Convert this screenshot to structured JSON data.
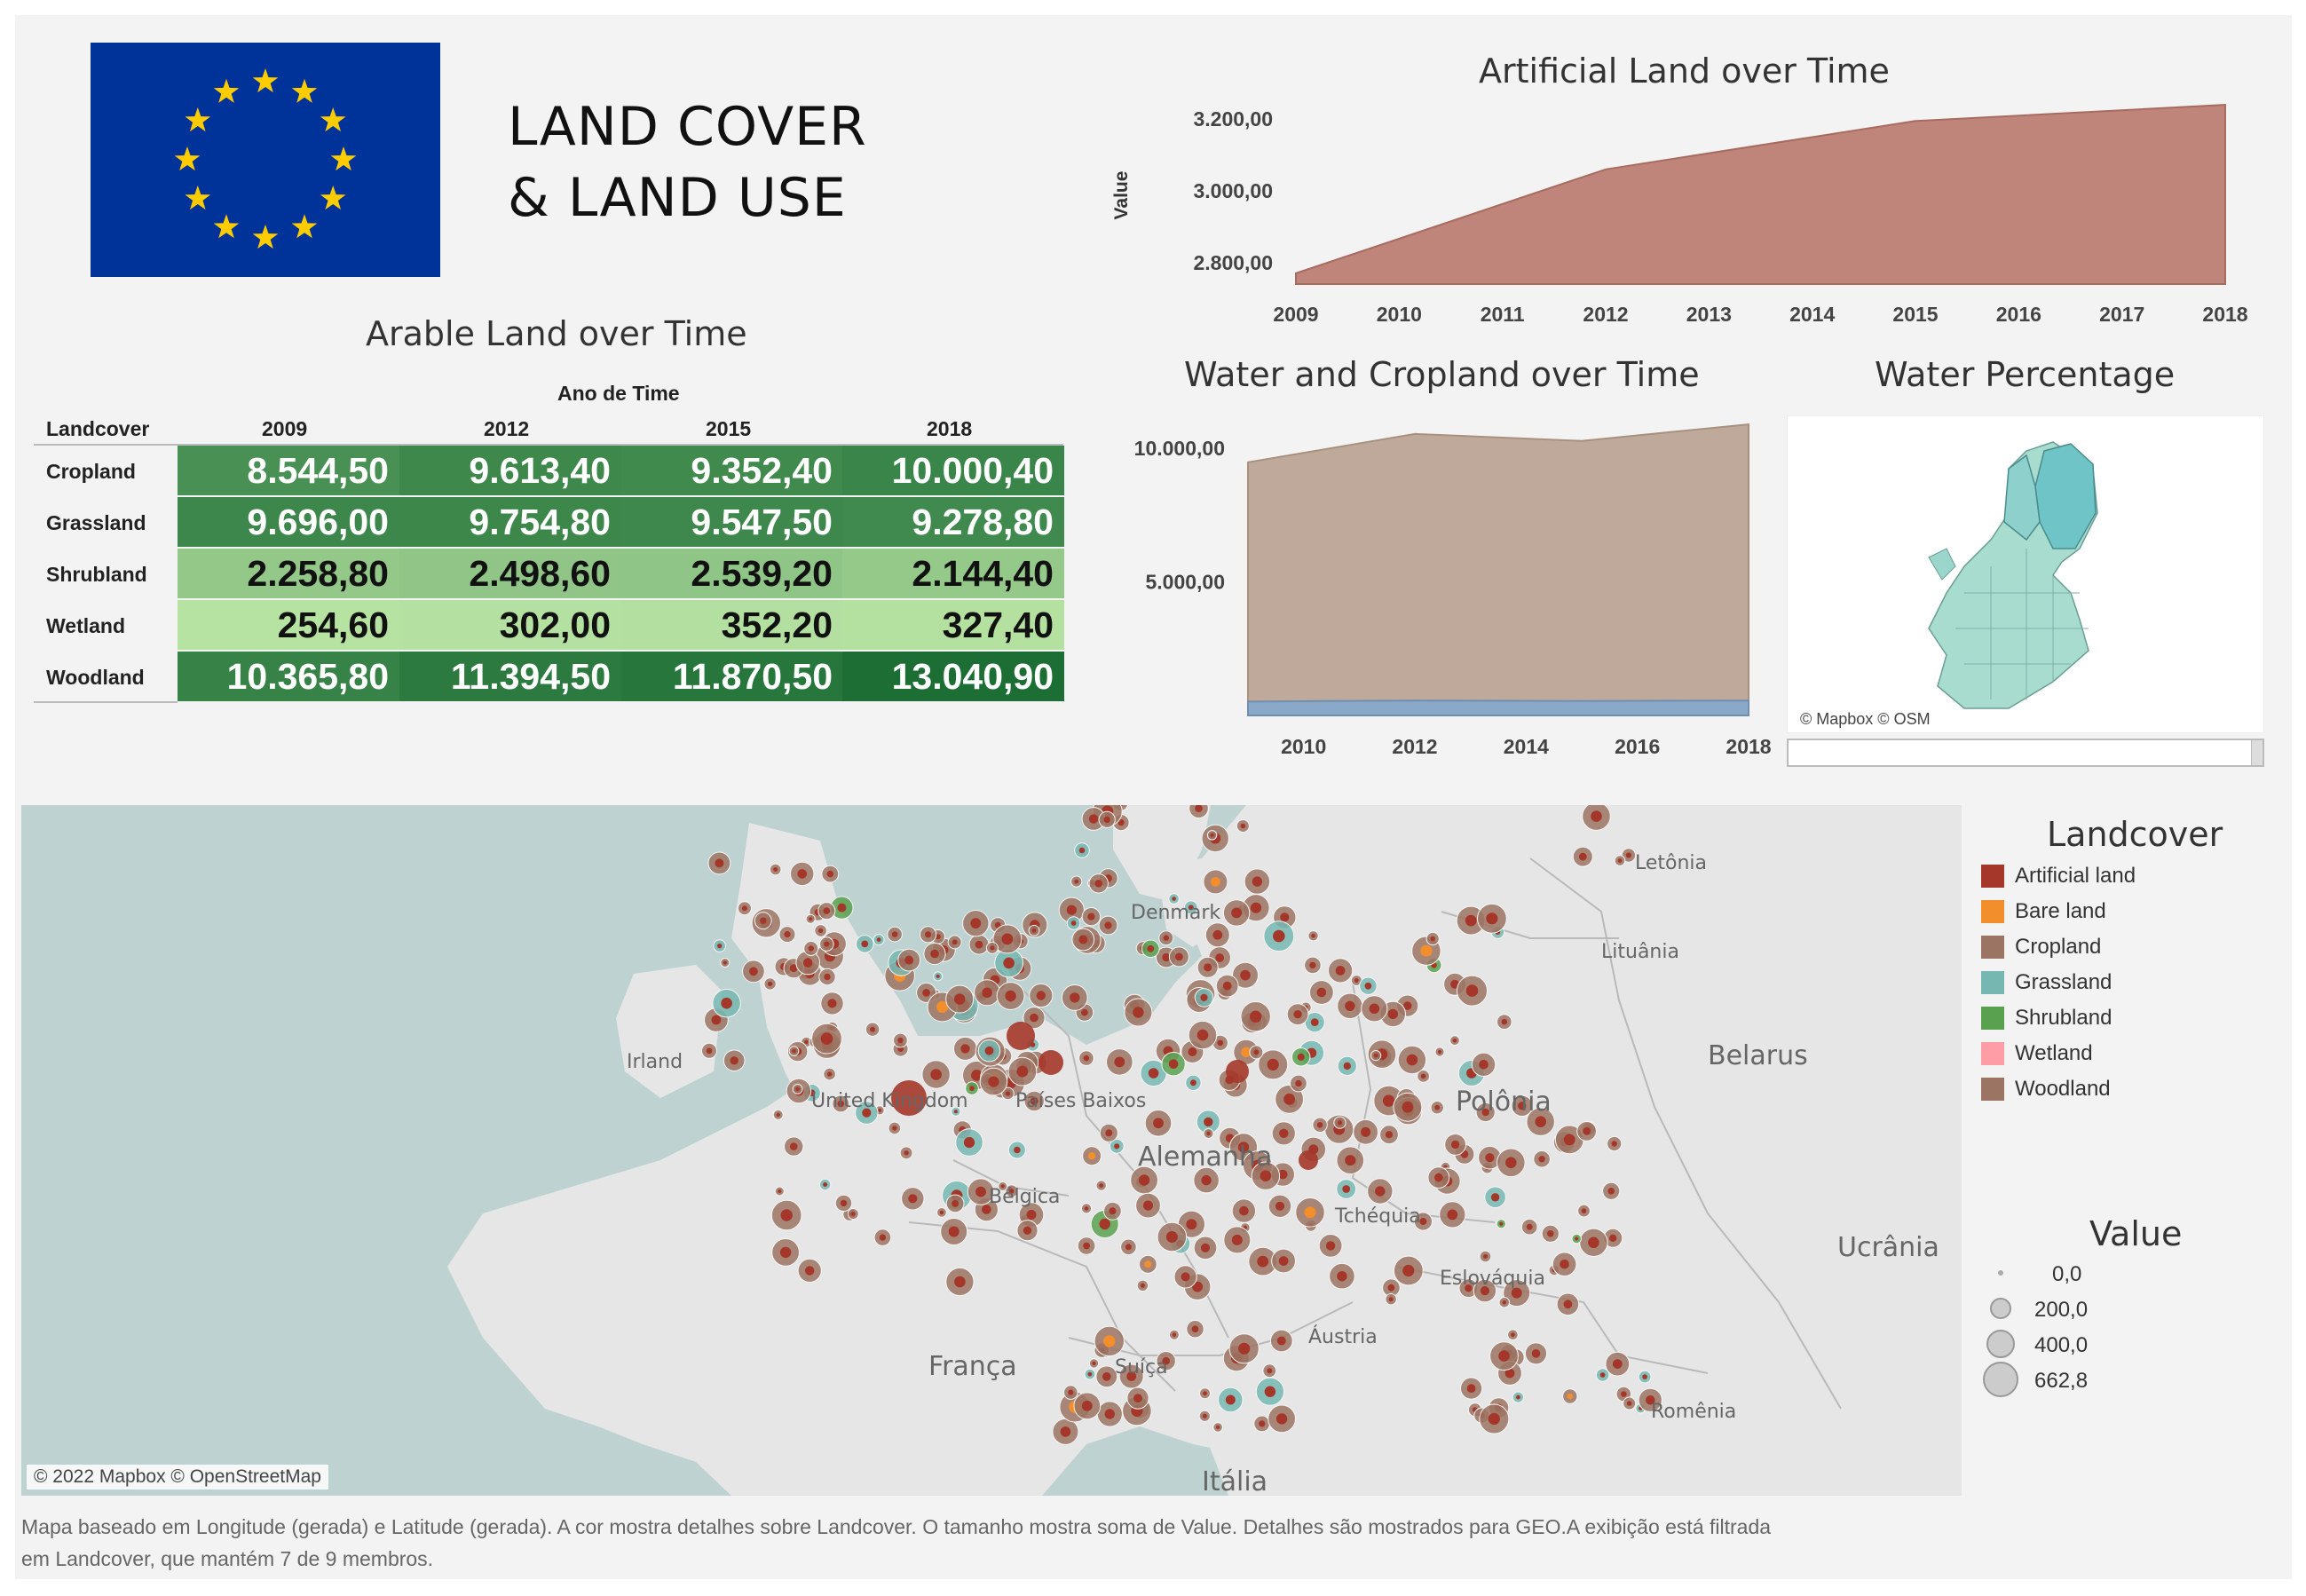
{
  "header": {
    "title_line1": "LAND COVER",
    "title_line2": "& LAND USE",
    "flag": {
      "name": "EU flag",
      "background": "#003399",
      "star_color": "#ffcc00",
      "star_count": 12
    }
  },
  "arable_table": {
    "title": "Arable Land over Time",
    "column_group_header": "Ano de Time",
    "row_header": "Landcover",
    "years": [
      "2009",
      "2012",
      "2015",
      "2018"
    ],
    "rows": [
      {
        "label": "Cropland",
        "values": [
          "8.544,50",
          "9.613,40",
          "9.352,40",
          "10.000,40"
        ]
      },
      {
        "label": "Grassland",
        "values": [
          "9.696,00",
          "9.754,80",
          "9.547,50",
          "9.278,80"
        ]
      },
      {
        "label": "Shrubland",
        "values": [
          "2.258,80",
          "2.498,60",
          "2.539,20",
          "2.144,40"
        ]
      },
      {
        "label": "Wetland",
        "values": [
          "254,60",
          "302,00",
          "352,20",
          "327,40"
        ]
      },
      {
        "label": "Woodland",
        "values": [
          "10.365,80",
          "11.394,50",
          "11.870,50",
          "13.040,90"
        ]
      }
    ]
  },
  "artificial_chart": {
    "title": "Artificial Land over Time",
    "ylabel": "Value",
    "y_ticks": [
      "2.800,00",
      "3.000,00",
      "3.200,00"
    ],
    "x_ticks": [
      "2009",
      "2010",
      "2011",
      "2012",
      "2013",
      "2014",
      "2015",
      "2016",
      "2017",
      "2018"
    ],
    "color": "#c0857a"
  },
  "water_crop_chart": {
    "title": "Water and Cropland over Time",
    "y_ticks": [
      "5.000,00",
      "10.000,00"
    ],
    "x_ticks": [
      "2010",
      "2012",
      "2014",
      "2016",
      "2018"
    ],
    "colors": {
      "cropland": "#bfa99a",
      "water": "#8aa9c8"
    }
  },
  "water_map": {
    "title": "Water Percentage",
    "attribution": "© Mapbox © OSM"
  },
  "main_map": {
    "attribution": "© 2022 Mapbox © OpenStreetMap",
    "labels": {
      "denmark": "Denmark",
      "latvia": "Letônia",
      "lithuania": "Lituânia",
      "belarus": "Belarus",
      "poland": "Polônia",
      "germany": "Alemanha",
      "ukraine": "Ucrânia",
      "france": "França",
      "switzerland": "Suíça",
      "italy": "Itália",
      "romania": "Romênia",
      "austria": "Áustria",
      "slovakia": "Eslováquia",
      "czechia": "Tchéquia",
      "ireland": "Irland",
      "uk": "United Kingdom",
      "belgium": "Bélgica",
      "netherlands": "Países Baixos"
    }
  },
  "legend": {
    "title": "Landcover",
    "items": [
      {
        "label": "Artificial land",
        "color": "#a4372a"
      },
      {
        "label": "Bare land",
        "color": "#f28e2b"
      },
      {
        "label": "Cropland",
        "color": "#9c7463"
      },
      {
        "label": "Grassland",
        "color": "#76b7b2"
      },
      {
        "label": "Shrubland",
        "color": "#59a14f"
      },
      {
        "label": "Wetland",
        "color": "#ff9da7"
      },
      {
        "label": "Woodland",
        "color": "#9c7463"
      }
    ],
    "size_title": "Value",
    "size_items": [
      "0,0",
      "200,0",
      "400,0",
      "662,8"
    ]
  },
  "caption": {
    "line1": "Mapa baseado em Longitude (gerada) e Latitude (gerada). A cor mostra detalhes sobre Landcover. O tamanho mostra soma de Value. Detalhes são mostrados para GEO.A exibição está filtrada",
    "line2": "em Landcover, que mantém 7 de 9 membros."
  },
  "chart_data": [
    {
      "type": "area",
      "title": "Artificial Land over Time",
      "xlabel": "",
      "ylabel": "Value",
      "x": [
        2009,
        2012,
        2015,
        2018
      ],
      "series": [
        {
          "values": [
            2770,
            3060,
            3195,
            3240
          ]
        }
      ],
      "ylim": [
        2740,
        3260
      ]
    },
    {
      "type": "area",
      "title": "Water and Cropland over Time",
      "x": [
        2009,
        2012,
        2015,
        2018
      ],
      "series": [
        {
          "values": [
            9480,
            10540,
            10280,
            10900
          ]
        },
        {
          "values": [
            520,
            560,
            540,
            560
          ]
        }
      ],
      "ylim": [
        0,
        11500
      ]
    },
    {
      "type": "table",
      "title": "Arable Land over Time",
      "columns": [
        "2009",
        "2012",
        "2015",
        "2018"
      ],
      "rows": [
        "Cropland",
        "Grassland",
        "Shrubland",
        "Wetland",
        "Woodland"
      ],
      "values": [
        [
          8544.5,
          9613.4,
          9352.4,
          10000.4
        ],
        [
          9696.0,
          9754.8,
          9547.5,
          9278.8
        ],
        [
          2258.8,
          2498.6,
          2539.2,
          2144.4
        ],
        [
          254.6,
          302.0,
          352.2,
          327.4
        ],
        [
          10365.8,
          11394.5,
          11870.5,
          13040.9
        ]
      ]
    }
  ]
}
